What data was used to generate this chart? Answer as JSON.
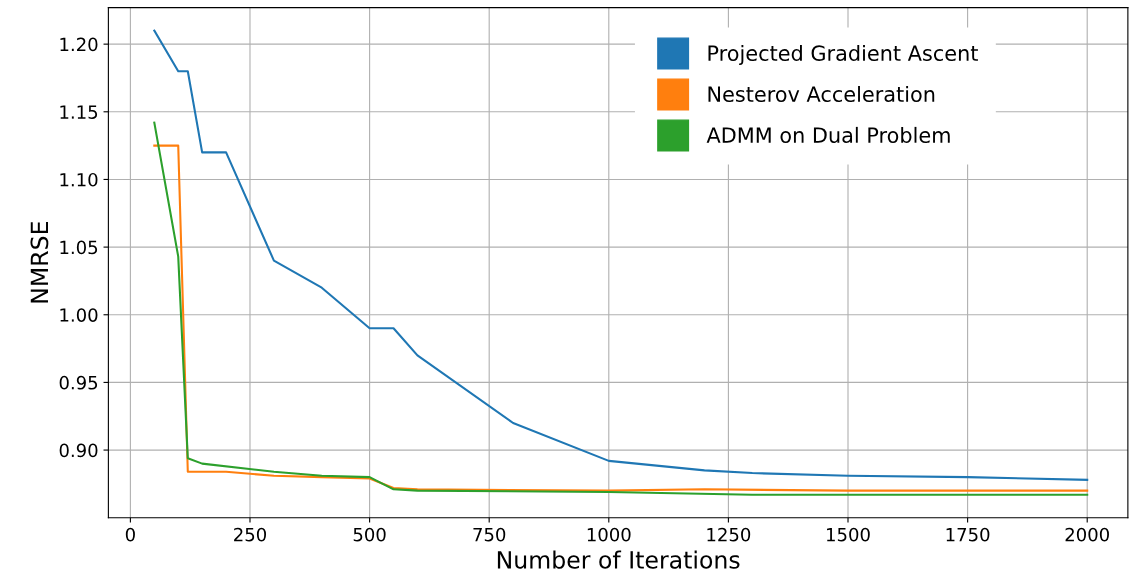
{
  "chart_data": {
    "type": "line",
    "xlabel": "Number of Iterations",
    "ylabel": "NMRSE",
    "xlim": [
      -46,
      2085
    ],
    "ylim": [
      0.85,
      1.227
    ],
    "xticks": [
      0,
      250,
      500,
      750,
      1000,
      1250,
      1500,
      1750,
      2000
    ],
    "yticks": [
      {
        "value": 0.9,
        "label": "0.90"
      },
      {
        "value": 0.95,
        "label": "0.95"
      },
      {
        "value": 1.0,
        "label": "1.00"
      },
      {
        "value": 1.05,
        "label": "1.05"
      },
      {
        "value": 1.1,
        "label": "1.10"
      },
      {
        "value": 1.15,
        "label": "1.15"
      },
      {
        "value": 1.2,
        "label": "1.20"
      }
    ],
    "grid": true,
    "legend": "top right",
    "marker": "none",
    "line_style": "solid",
    "series": [
      {
        "name": "Projected Gradient Ascent",
        "color": "#1f77b4",
        "x": [
          50,
          100,
          120,
          150,
          200,
          300,
          400,
          500,
          550,
          600,
          800,
          1000,
          1200,
          1300,
          1500,
          1750,
          2000
        ],
        "values": [
          1.21,
          1.18,
          1.18,
          1.12,
          1.12,
          1.04,
          1.02,
          0.99,
          0.99,
          0.97,
          0.92,
          0.892,
          0.885,
          0.883,
          0.881,
          0.88,
          0.878
        ]
      },
      {
        "name": "Nesterov Acceleration",
        "color": "#ff7f0e",
        "x": [
          50,
          100,
          120,
          200,
          300,
          400,
          500,
          550,
          600,
          1000,
          1200,
          1500,
          2000
        ],
        "values": [
          1.125,
          1.125,
          0.884,
          0.884,
          0.881,
          0.88,
          0.879,
          0.872,
          0.871,
          0.87,
          0.871,
          0.87,
          0.87
        ]
      },
      {
        "name": "ADMM on Dual Problem",
        "color": "#2ca02c",
        "x": [
          50,
          100,
          120,
          150,
          300,
          400,
          500,
          550,
          600,
          1000,
          1300,
          2000
        ],
        "values": [
          1.142,
          1.043,
          0.894,
          0.89,
          0.884,
          0.881,
          0.88,
          0.871,
          0.87,
          0.869,
          0.867,
          0.867
        ]
      }
    ]
  }
}
